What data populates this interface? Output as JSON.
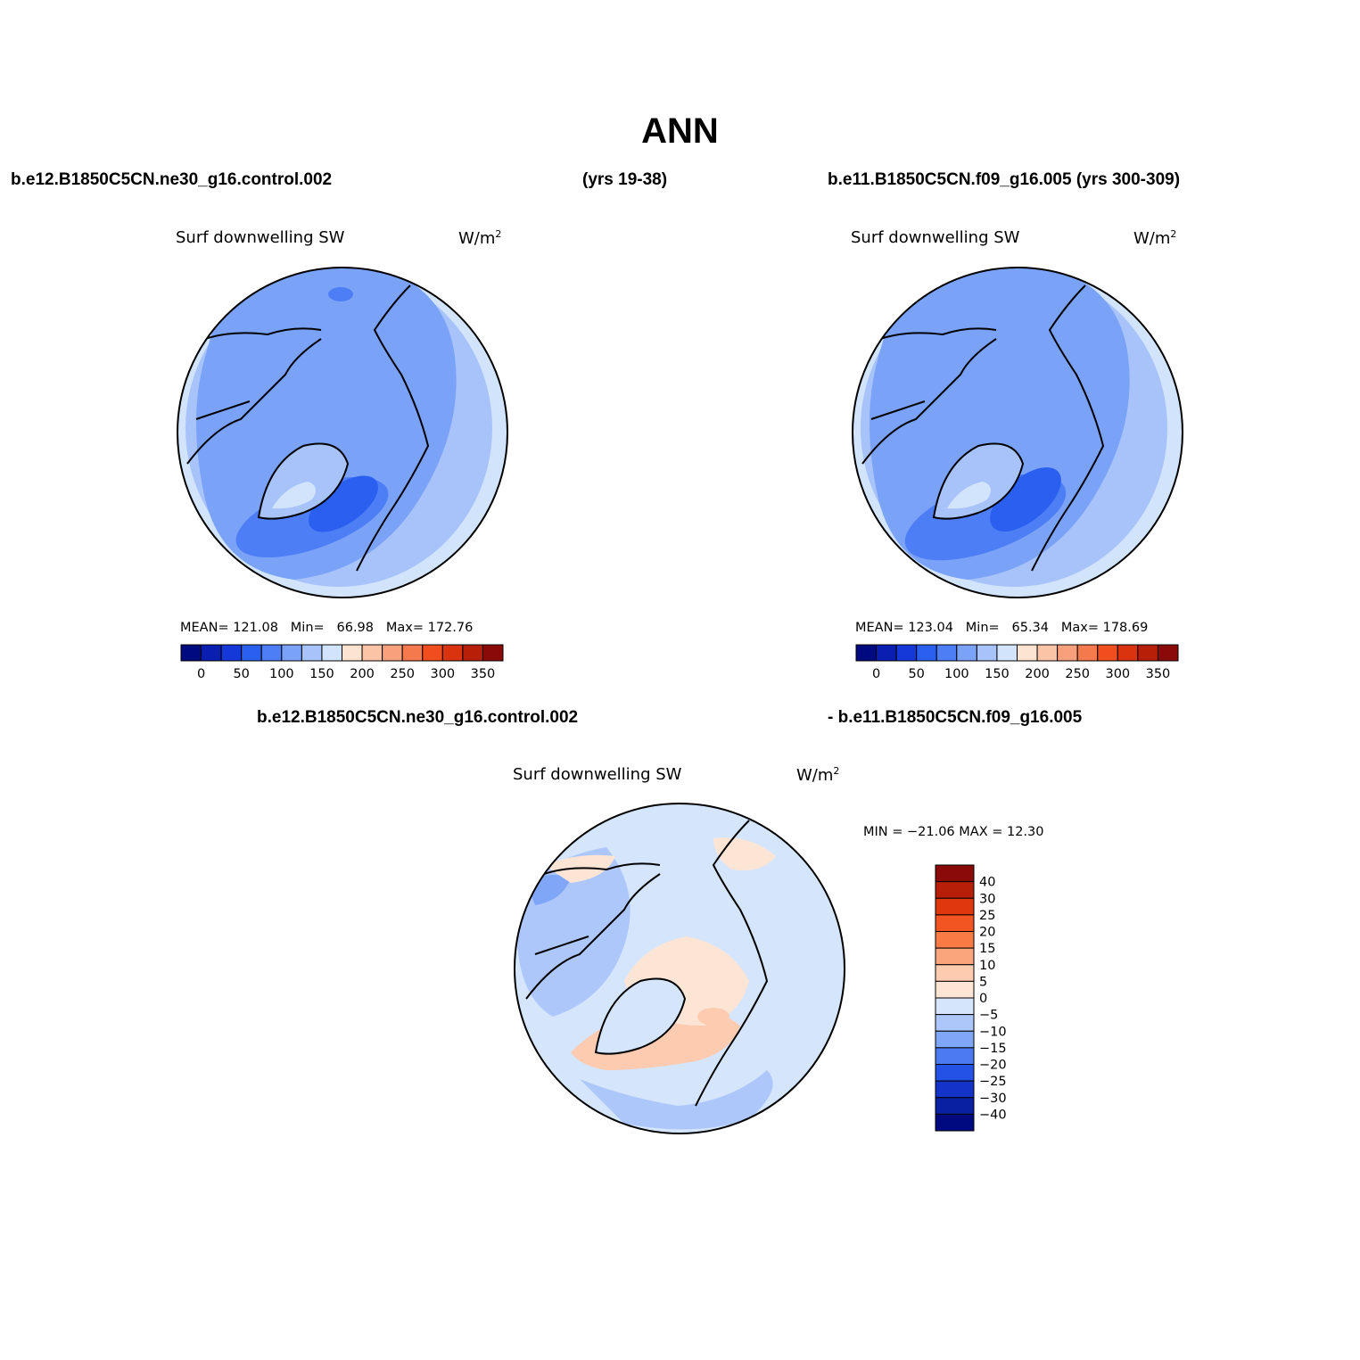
{
  "title": "ANN",
  "header": {
    "case1": "b.e12.B1850C5CN.ne30_g16.control.002",
    "case1_years": "(yrs 19-38)",
    "case2": "b.e11.B1850C5CN.f09_g16.005 (yrs 300-309)",
    "diff_case1": "b.e12.B1850C5CN.ne30_g16.control.002",
    "diff_case2": "- b.e11.B1850C5CN.f09_g16.005"
  },
  "panels": [
    {
      "variable": "Surf downwelling SW",
      "units": "W/m",
      "units_sup": "2",
      "stats": {
        "mean_label": "MEAN=",
        "mean": "121.08",
        "min_label": "Min=",
        "min": "66.98",
        "max_label": "Max=",
        "max": "172.76"
      }
    },
    {
      "variable": "Surf downwelling SW",
      "units": "W/m",
      "units_sup": "2",
      "stats": {
        "mean_label": "MEAN=",
        "mean": "123.04",
        "min_label": "Min=",
        "min": "65.34",
        "max_label": "Max=",
        "max": "178.69"
      }
    },
    {
      "variable": "Surf downwelling SW",
      "units": "W/m",
      "units_sup": "2",
      "stats_text": "MIN = −21.06  MAX =   12.30"
    }
  ],
  "colorbar_abs": {
    "labels": [
      "0",
      "50",
      "100",
      "150",
      "200",
      "250",
      "300",
      "350"
    ],
    "colors": [
      "#000a80",
      "#0a1faf",
      "#1538d8",
      "#2a5ff0",
      "#4d7ef5",
      "#7aa2f7",
      "#a8c3fa",
      "#d2e4fc",
      "#fde3d1",
      "#fbc4a6",
      "#f7a07b",
      "#f47a4e",
      "#f04e1f",
      "#d9330f",
      "#b81f09",
      "#8a0a0a"
    ]
  },
  "colorbar_diff": {
    "labels": [
      "40",
      "30",
      "25",
      "20",
      "15",
      "10",
      "5",
      "0",
      "−5",
      "−10",
      "−15",
      "−20",
      "−25",
      "−30",
      "−40"
    ],
    "colors": [
      "#8a0a0a",
      "#b81f09",
      "#e0380c",
      "#f25521",
      "#f87b45",
      "#fba57d",
      "#fdcbb0",
      "#fde5d6",
      "#d4e5fc",
      "#aec7fa",
      "#80a6f7",
      "#4b7af2",
      "#2452e6",
      "#1333c9",
      "#0920a2",
      "#000a80"
    ]
  },
  "map_colors": {
    "ocean_far": "#a8c3fa",
    "ring": "#d2e4fc",
    "mid": "#7aa2f7",
    "dark": "#4d7ef5",
    "darker": "#2a5ff0",
    "greenland": "#d2e4fc",
    "diff_base": "#d4e5fc",
    "diff_neg": "#aec7fa",
    "diff_neg2": "#80a6f7",
    "diff_pos": "#fde5d6",
    "diff_pos2": "#fdcbb0"
  }
}
